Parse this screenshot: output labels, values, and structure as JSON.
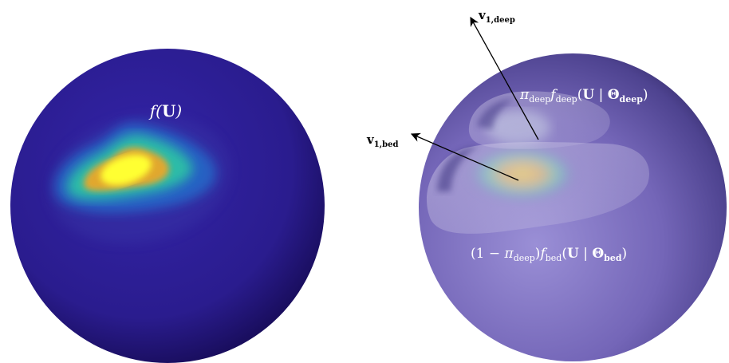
{
  "labels": {
    "density": "f(U)",
    "v1_deep": "v1,deep",
    "v1_bed": "v1,bed",
    "deep_component": "π_deep f_deep(U | Θ_deep)",
    "bed_component": "(1 − π_deep) f_bed(U | Θ_bed)"
  },
  "colors": {
    "sphere_base": "#2a1f8f",
    "sphere_dark": "#1a0f5a",
    "density_peak": "#ffff33",
    "density_mid": "#f5a623",
    "density_low": "#2fd3a0",
    "density_edge": "#1e90ff",
    "translucent_sphere": "#7a6fbf",
    "arrow": "#000000",
    "label_text": "#ffffff"
  }
}
